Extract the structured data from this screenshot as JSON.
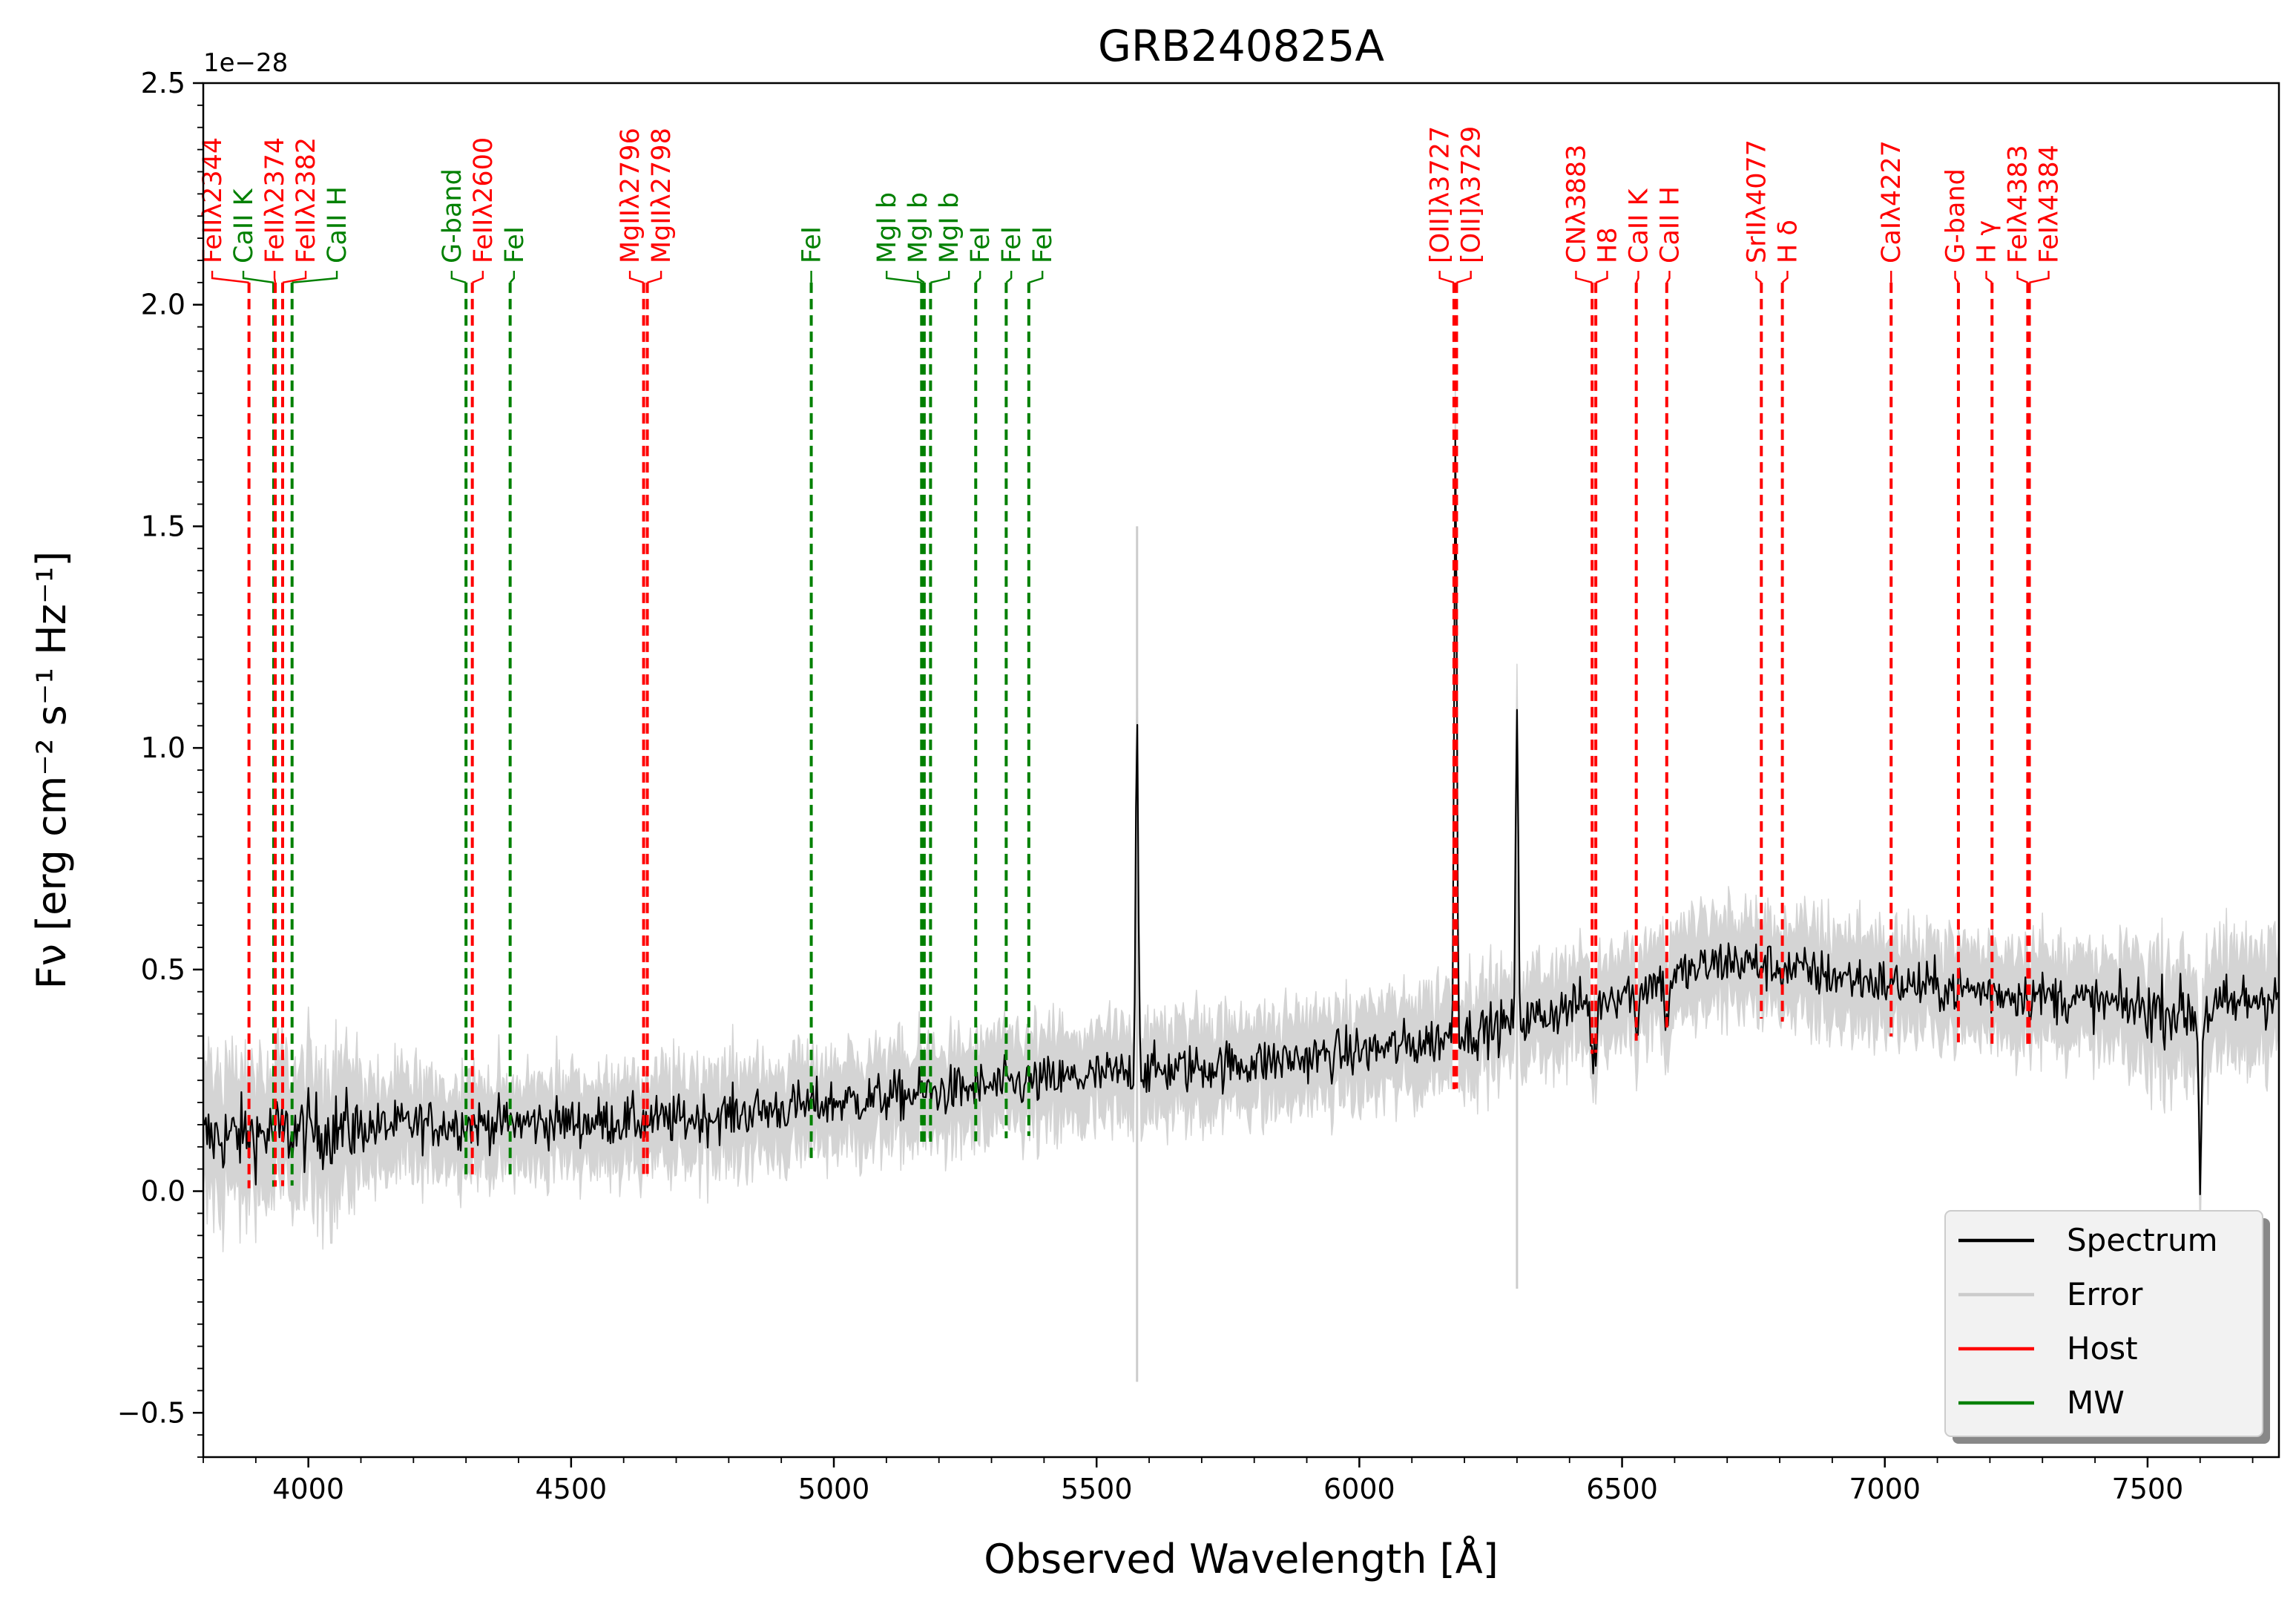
{
  "chart_data": {
    "type": "line",
    "title": "GRB240825A",
    "xlabel": "Observed Wavelength [Å]",
    "ylabel": "Fν [erg cm⁻² s⁻¹ Hz⁻¹]",
    "y_offset_label": "1e−28",
    "xlim": [
      3800,
      7750
    ],
    "ylim": [
      -0.6,
      2.5
    ],
    "x_ticks": [
      4000,
      4500,
      5000,
      5500,
      6000,
      6500,
      7000,
      7500
    ],
    "x_tick_labels": [
      "4000",
      "4500",
      "5000",
      "5500",
      "6000",
      "6500",
      "7000",
      "7500"
    ],
    "y_ticks": [
      -0.5,
      0.0,
      0.5,
      1.0,
      1.5,
      2.0,
      2.5
    ],
    "y_tick_labels": [
      "−0.5",
      "0.0",
      "0.5",
      "1.0",
      "1.5",
      "2.0",
      "2.5"
    ],
    "grid": false,
    "legend": {
      "position": "lower-right",
      "entries": [
        {
          "label": "Spectrum",
          "color": "#000000"
        },
        {
          "label": "Error",
          "color": "#cccccc"
        },
        {
          "label": "Host",
          "color": "#ff0000"
        },
        {
          "label": "MW",
          "color": "#008000"
        }
      ]
    },
    "spectrum_shape": {
      "description": "noisy continuum rising from ~0.15 at 3800 Å to ~0.45 at 7750 Å",
      "anchors": [
        [
          3800,
          0.12
        ],
        [
          4200,
          0.15
        ],
        [
          4700,
          0.16
        ],
        [
          5000,
          0.2
        ],
        [
          5500,
          0.26
        ],
        [
          5900,
          0.3
        ],
        [
          6100,
          0.33
        ],
        [
          6300,
          0.38
        ],
        [
          6500,
          0.45
        ],
        [
          6700,
          0.52
        ],
        [
          7000,
          0.47
        ],
        [
          7300,
          0.44
        ],
        [
          7600,
          0.4
        ],
        [
          7750,
          0.45
        ]
      ],
      "features": [
        {
          "x": 5577,
          "peak": 1.08,
          "kind": "sky emission"
        },
        {
          "x": 6183,
          "peak": 1.72,
          "kind": "[OII] emission"
        },
        {
          "x": 6300,
          "peak": 1.04,
          "kind": "sky emission"
        },
        {
          "x": 7600,
          "peak": 0.02,
          "kind": "telluric absorption"
        }
      ]
    },
    "lines": [
      {
        "label": "FeIIλ2344",
        "x": 3887,
        "group": "Host"
      },
      {
        "label": "CaII K",
        "x": 3934,
        "group": "MW"
      },
      {
        "label": "FeIIλ2374",
        "x": 3937,
        "group": "Host"
      },
      {
        "label": "FeIIλ2382",
        "x": 3951,
        "group": "Host"
      },
      {
        "label": "CaII H",
        "x": 3969,
        "group": "MW"
      },
      {
        "label": "G-band",
        "x": 4300,
        "group": "MW"
      },
      {
        "label": "FeIIλ2600",
        "x": 4312,
        "group": "Host"
      },
      {
        "label": "FeI",
        "x": 4384,
        "group": "MW"
      },
      {
        "label": "MgIIλ2796",
        "x": 4638,
        "group": "Host"
      },
      {
        "label": "MgIIλ2798",
        "x": 4645,
        "group": "Host"
      },
      {
        "label": "FeI",
        "x": 4957,
        "group": "MW"
      },
      {
        "label": "MgI b",
        "x": 5167,
        "group": "MW"
      },
      {
        "label": "MgI b",
        "x": 5172,
        "group": "MW"
      },
      {
        "label": "MgI b",
        "x": 5184,
        "group": "MW"
      },
      {
        "label": "FeI",
        "x": 5270,
        "group": "MW"
      },
      {
        "label": "FeI",
        "x": 5328,
        "group": "MW"
      },
      {
        "label": "FeI",
        "x": 5371,
        "group": "MW"
      },
      {
        "label": "[OII]λ3727",
        "x": 6180,
        "group": "Host"
      },
      {
        "label": "[OII]λ3729",
        "x": 6185,
        "group": "Host"
      },
      {
        "label": "CNλ3883",
        "x": 6443,
        "group": "Host"
      },
      {
        "label": "H8",
        "x": 6450,
        "group": "Host"
      },
      {
        "label": "CaII K",
        "x": 6527,
        "group": "Host"
      },
      {
        "label": "CaII H",
        "x": 6585,
        "group": "Host"
      },
      {
        "label": "SrIIλ4077",
        "x": 6765,
        "group": "Host"
      },
      {
        "label": "H δ",
        "x": 6805,
        "group": "Host"
      },
      {
        "label": "CaIλ4227",
        "x": 7012,
        "group": "Host"
      },
      {
        "label": "G-band",
        "x": 7140,
        "group": "Host"
      },
      {
        "label": "H γ",
        "x": 7204,
        "group": "Host"
      },
      {
        "label": "FeIλ4383",
        "x": 7272,
        "group": "Host"
      },
      {
        "label": "FeIλ4384",
        "x": 7275,
        "group": "Host"
      }
    ]
  }
}
